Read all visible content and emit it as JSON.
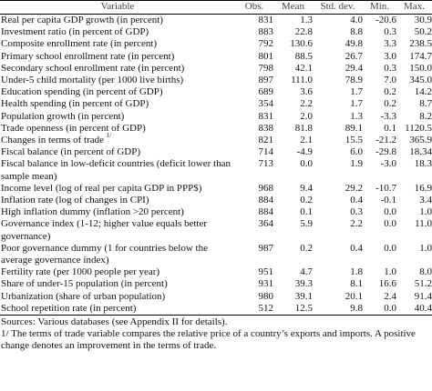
{
  "table": {
    "headers": [
      "Variable",
      "Obs.",
      "Mean",
      "Std. dev.",
      "Min.",
      "Max."
    ],
    "rows": [
      [
        "Real per capita GDP growth (in percent)",
        "831",
        "1.3",
        "4.0",
        "-20.6",
        "30.9"
      ],
      [
        "Investment ratio (in percent of GDP)",
        "883",
        "22.8",
        "8.8",
        "0.3",
        "50.2"
      ],
      [
        "Composite enrollment rate (in percent)",
        "792",
        "130.6",
        "49.8",
        "3.3",
        "238.5"
      ],
      [
        "Primary school enrollment rate (in percent)",
        "801",
        "88.5",
        "26.7",
        "3.0",
        "174.7"
      ],
      [
        "Secondary school enrollment rate (in percent)",
        "798",
        "42.1",
        "29.4",
        "0.3",
        "150.0"
      ],
      [
        "Under-5 child mortality (per 1000 live births)",
        "897",
        "111.0",
        "78.9",
        "7.0",
        "345.0"
      ],
      [
        "Education spending (in percent of GDP)",
        "689",
        "3.6",
        "1.7",
        "0.2",
        "14.2"
      ],
      [
        "Health spending (in percent of GDP)",
        "354",
        "2.2",
        "1.7",
        "0.2",
        "8.7"
      ],
      [
        "Population growth (in percent)",
        "831",
        "2.0",
        "1.3",
        "-3.3",
        "8.2"
      ],
      [
        "Trade openness (in percent of GDP)",
        "838",
        "81.8",
        "89.1",
        "0.1",
        "1120.5"
      ],
      [
        "Changes in terms of trade",
        "821",
        "2.1",
        "15.5",
        "-21.2",
        "365.9"
      ],
      [
        "Fiscal balance (in percent of GDP)",
        "714",
        "-4.9",
        "6.0",
        "-29.8",
        "18.34"
      ],
      [
        "Fiscal balance in low-deficit countries (deficit lower than sample mean)",
        "713",
        "0.0",
        "1.9",
        "-3.0",
        "18.3"
      ],
      [
        "Income level (log of real per capita GDP in PPP$)",
        "968",
        "9.4",
        "29.2",
        "-10.7",
        "16.9"
      ],
      [
        "Inflation rate (log of changes in CPI)",
        "884",
        "0.2",
        "0.4",
        "-0.1",
        "3.4"
      ],
      [
        "High inflation dummy (inflation >20 percent)",
        "884",
        "0.1",
        "0.3",
        "0.0",
        "1.0"
      ],
      [
        "Governance index (1-12; higher value equals better governance)",
        "364",
        "5.9",
        "2.2",
        "0.0",
        "11.0"
      ],
      [
        "Poor governance dummy (1 for countries below the average governance index)",
        "987",
        "0.2",
        "0.4",
        "0.0",
        "1.0"
      ],
      [
        "Fertility rate (per 1000 people per year)",
        "951",
        "4.7",
        "1.8",
        "1.0",
        "8.0"
      ],
      [
        "Share of under-15 population (in percent)",
        "931",
        "39.3",
        "8.1",
        "16.6",
        "51.2"
      ],
      [
        "Urbanization (share of urban population)",
        "980",
        "39.1",
        "20.1",
        "2.4",
        "91.4"
      ],
      [
        "School repetition rate (in percent)",
        "512",
        "12.5",
        "9.8",
        "0.0",
        "40.4"
      ]
    ],
    "tot_superscript": "1/"
  },
  "notes": {
    "source": "Sources: Various databases (see Appendix II for details).",
    "footnote": "1/ The terms of trade variable compares the relative price of a country’s exports and imports. A positive change denotes an improvement in the terms of trade."
  }
}
